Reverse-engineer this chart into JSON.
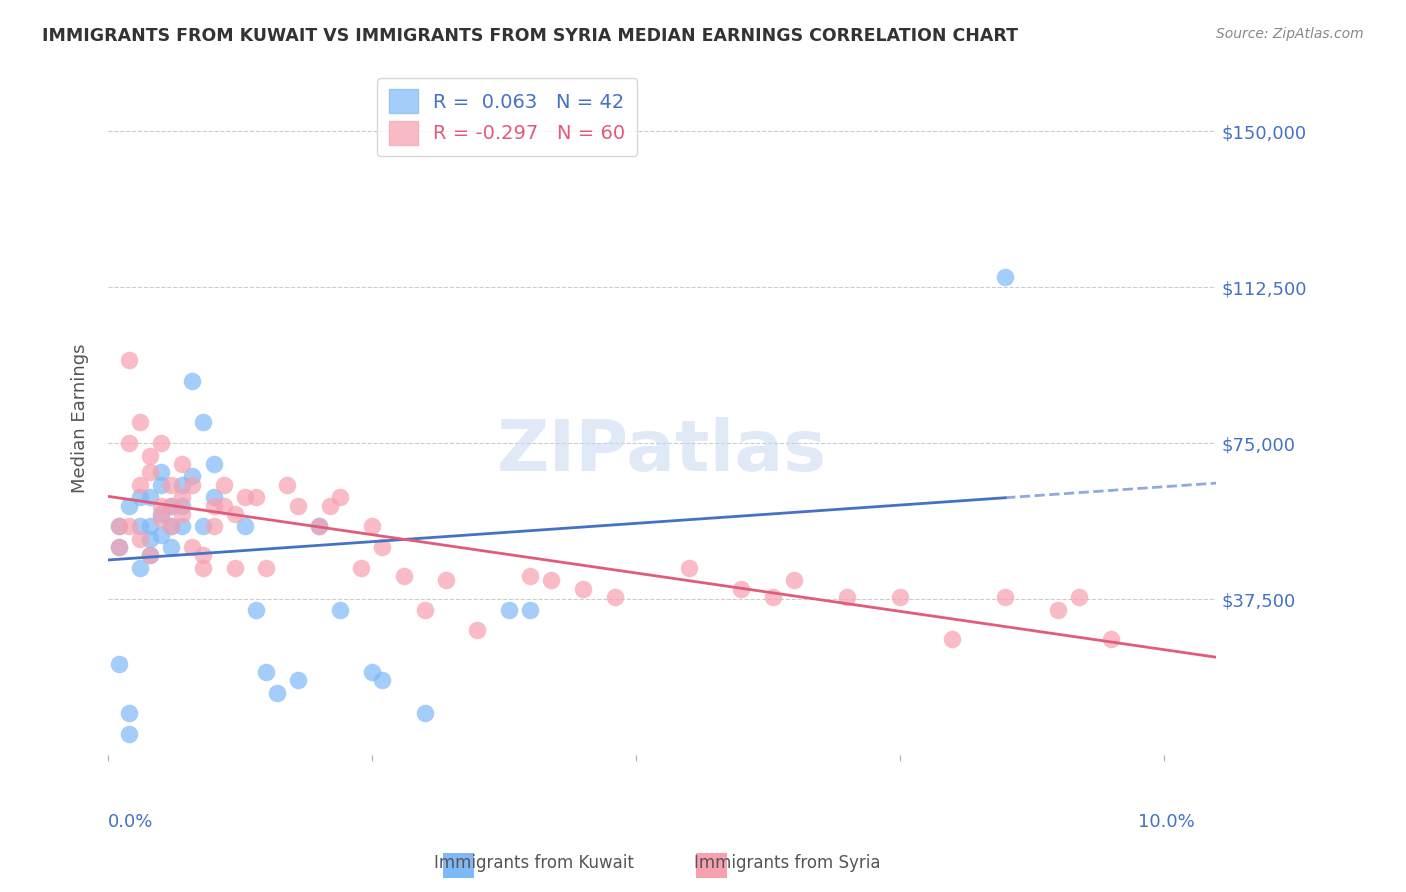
{
  "title": "IMMIGRANTS FROM KUWAIT VS IMMIGRANTS FROM SYRIA MEDIAN EARNINGS CORRELATION CHART",
  "source": "Source: ZipAtlas.com",
  "ylabel": "Median Earnings",
  "yticks": [
    0,
    37500,
    75000,
    112500,
    150000
  ],
  "ytick_labels": [
    "",
    "$37,500",
    "$75,000",
    "$112,500",
    "$150,000"
  ],
  "ylim": [
    0,
    162000
  ],
  "xlim": [
    0.0,
    0.105
  ],
  "legend_kuwait_R": "R =  0.063",
  "legend_kuwait_N": "N = 42",
  "legend_syria_R": "R = -0.297",
  "legend_syria_N": "N = 60",
  "color_kuwait": "#7eb8f7",
  "color_syria": "#f7a0b0",
  "color_kuwait_line": "#4472c4",
  "color_syria_line": "#e05c7a",
  "color_axis_labels": "#4472c4",
  "color_title": "#333333",
  "color_source": "#888888",
  "color_watermark": "#c8d8f0",
  "kuwait_x": [
    0.002,
    0.002,
    0.003,
    0.003,
    0.003,
    0.004,
    0.004,
    0.004,
    0.004,
    0.005,
    0.005,
    0.005,
    0.005,
    0.006,
    0.006,
    0.006,
    0.007,
    0.007,
    0.007,
    0.008,
    0.008,
    0.009,
    0.009,
    0.01,
    0.01,
    0.013,
    0.014,
    0.015,
    0.016,
    0.018,
    0.02,
    0.022,
    0.025,
    0.026,
    0.03,
    0.038,
    0.04,
    0.001,
    0.001,
    0.002,
    0.001,
    0.085
  ],
  "kuwait_y": [
    10000,
    5000,
    55000,
    62000,
    45000,
    55000,
    62000,
    52000,
    48000,
    68000,
    65000,
    58000,
    53000,
    60000,
    55000,
    50000,
    65000,
    60000,
    55000,
    90000,
    67000,
    80000,
    55000,
    70000,
    62000,
    55000,
    35000,
    20000,
    15000,
    18000,
    55000,
    35000,
    20000,
    18000,
    10000,
    35000,
    35000,
    55000,
    50000,
    60000,
    22000,
    115000
  ],
  "syria_x": [
    0.001,
    0.002,
    0.002,
    0.003,
    0.003,
    0.004,
    0.004,
    0.005,
    0.005,
    0.006,
    0.006,
    0.007,
    0.007,
    0.008,
    0.009,
    0.01,
    0.011,
    0.012,
    0.014,
    0.015,
    0.017,
    0.018,
    0.02,
    0.021,
    0.022,
    0.024,
    0.025,
    0.026,
    0.028,
    0.03,
    0.032,
    0.035,
    0.04,
    0.042,
    0.045,
    0.048,
    0.055,
    0.06,
    0.063,
    0.065,
    0.07,
    0.075,
    0.08,
    0.085,
    0.001,
    0.002,
    0.003,
    0.004,
    0.005,
    0.006,
    0.007,
    0.008,
    0.009,
    0.01,
    0.011,
    0.012,
    0.013,
    0.09,
    0.092,
    0.095
  ],
  "syria_y": [
    55000,
    95000,
    75000,
    80000,
    65000,
    72000,
    68000,
    60000,
    75000,
    65000,
    60000,
    70000,
    58000,
    65000,
    45000,
    60000,
    65000,
    58000,
    62000,
    45000,
    65000,
    60000,
    55000,
    60000,
    62000,
    45000,
    55000,
    50000,
    43000,
    35000,
    42000,
    30000,
    43000,
    42000,
    40000,
    38000,
    45000,
    40000,
    38000,
    42000,
    38000,
    38000,
    28000,
    38000,
    50000,
    55000,
    52000,
    48000,
    57000,
    55000,
    62000,
    50000,
    48000,
    55000,
    60000,
    45000,
    62000,
    35000,
    38000,
    28000
  ],
  "background_color": "#ffffff",
  "grid_color": "#cccccc"
}
